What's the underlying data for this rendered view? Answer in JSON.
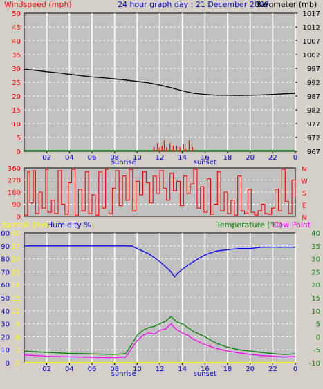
{
  "header": {
    "windspeed_label": "Windspeed (mph)",
    "title": "24 hour graph day : 21 December 2009",
    "barometer_label": "Barometer (mb)"
  },
  "sunrise_label": "sunrise",
  "sunset_label": "sunset",
  "x_ticks": [
    "02",
    "04",
    "06",
    "08",
    "10",
    "12",
    "14",
    "16",
    "18",
    "20",
    "22",
    "0"
  ],
  "bottom_header": {
    "rainfall_label": "Rainfall (mm)",
    "humidity_label": "Humidity %",
    "temperature_label": "Temperature (°C)",
    "dewpoint_label": "Dew Point"
  },
  "colors": {
    "background": "#d4d0c8",
    "plot_bg": "#c0c0c0",
    "barometer": "#000000",
    "windspeed": "#ff0000",
    "wind_dir": "#ff0000",
    "humidity": "#0000ff",
    "temperature": "#008000",
    "dewpoint": "#ff00ff",
    "rainfall": "#ffff00",
    "grid": "#ffffff"
  },
  "chart_data": [
    {
      "type": "line",
      "title": "24 hour graph day : 21 December 2009",
      "xlabel": "",
      "left_axis": {
        "label": "Windspeed (mph)",
        "ticks": [
          0,
          5,
          10,
          15,
          20,
          25,
          30,
          35,
          40,
          45,
          50
        ],
        "range": [
          0,
          50
        ]
      },
      "right_axis": {
        "label": "Barometer (mb)",
        "ticks": [
          967,
          972,
          977,
          982,
          987,
          992,
          997,
          1002,
          1007,
          1012,
          1017
        ],
        "range": [
          967,
          1017
        ]
      },
      "x_range_hours": [
        0,
        24
      ],
      "series": [
        {
          "name": "Barometer (mb)",
          "axis": "right",
          "type": "line",
          "x": [
            0,
            1,
            2,
            3,
            4,
            5,
            6,
            7,
            8,
            9,
            10,
            11,
            12,
            13,
            14,
            15,
            16,
            17,
            18,
            19,
            20,
            21,
            22,
            23,
            24
          ],
          "y": [
            996.7,
            996.3,
            995.8,
            995.4,
            994.9,
            994.4,
            993.9,
            993.6,
            993.2,
            992.8,
            992.3,
            991.8,
            991.0,
            990.0,
            988.9,
            988.0,
            987.6,
            987.3,
            987.3,
            987.2,
            987.3,
            987.4,
            987.6,
            987.8,
            988.0
          ]
        },
        {
          "name": "Windspeed (mph)",
          "axis": "left",
          "type": "bar",
          "x": [
            11.5,
            11.8,
            12.0,
            12.2,
            12.4,
            12.6,
            12.9,
            13.2,
            13.5,
            13.8,
            14.1,
            14.3,
            14.6,
            14.9
          ],
          "y": [
            1.5,
            3.0,
            1.5,
            2.0,
            4.0,
            1.5,
            3.0,
            2.0,
            2.0,
            1.5,
            2.5,
            1.0,
            4.0,
            1.5
          ]
        }
      ]
    },
    {
      "type": "line",
      "left_axis": {
        "ticks": [
          0,
          90,
          180,
          270,
          360
        ],
        "range": [
          0,
          360
        ]
      },
      "right_axis": {
        "ticks": [
          "N",
          "W",
          "S",
          "E",
          "N"
        ]
      },
      "x_range_hours": [
        0,
        24
      ],
      "series": [
        {
          "name": "Wind direction",
          "x": [
            0.0,
            0.3,
            0.5,
            0.8,
            1.0,
            1.3,
            1.6,
            1.9,
            2.1,
            2.4,
            2.7,
            3.0,
            3.3,
            3.6,
            3.9,
            4.2,
            4.5,
            4.8,
            5.1,
            5.4,
            5.7,
            6.0,
            6.3,
            6.6,
            6.9,
            7.2,
            7.5,
            7.8,
            8.1,
            8.4,
            8.7,
            9.0,
            9.3,
            9.6,
            9.9,
            10.2,
            10.5,
            10.8,
            11.1,
            11.4,
            11.7,
            12.0,
            12.3,
            12.6,
            12.9,
            13.2,
            13.5,
            13.8,
            14.1,
            14.4,
            14.7,
            15.0,
            15.3,
            15.6,
            15.9,
            16.2,
            16.5,
            16.8,
            17.1,
            17.4,
            17.7,
            18.0,
            18.3,
            18.6,
            18.9,
            19.2,
            19.5,
            19.8,
            20.1,
            20.4,
            20.7,
            21.0,
            21.3,
            21.6,
            21.9,
            22.2,
            22.5,
            22.8,
            23.1,
            23.4,
            23.7,
            24.0
          ],
          "y": [
            10,
            330,
            100,
            340,
            20,
            180,
            60,
            350,
            30,
            120,
            20,
            340,
            90,
            15,
            250,
            350,
            10,
            200,
            40,
            330,
            20,
            160,
            10,
            330,
            60,
            350,
            20,
            210,
            340,
            80,
            300,
            120,
            350,
            40,
            260,
            160,
            330,
            250,
            100,
            300,
            170,
            340,
            210,
            120,
            320,
            190,
            260,
            80,
            300,
            170,
            240,
            350,
            60,
            220,
            30,
            280,
            15,
            90,
            330,
            40,
            180,
            20,
            120,
            10,
            300,
            40,
            20,
            200,
            30,
            10,
            40,
            90,
            20,
            15,
            60,
            200,
            40,
            350,
            110,
            20,
            270,
            140
          ]
        }
      ]
    },
    {
      "type": "line",
      "axes": [
        {
          "label": "Humidity %",
          "side": "left",
          "ticks": [
            0,
            10,
            20,
            30,
            40,
            50,
            60,
            70,
            80,
            90,
            100
          ],
          "range": [
            0,
            100
          ]
        },
        {
          "label": "Rainfall (mm)",
          "side": "left",
          "ticks": [
            0,
            3,
            6,
            9,
            12,
            15,
            18,
            21,
            24,
            27,
            30
          ],
          "range": [
            0,
            30
          ]
        },
        {
          "label": "Temperature (°C)",
          "side": "right",
          "ticks": [
            -10,
            -5,
            0,
            5,
            10,
            15,
            20,
            25,
            30,
            35,
            40
          ],
          "range": [
            -10,
            40
          ]
        }
      ],
      "x_range_hours": [
        0,
        24
      ],
      "series": [
        {
          "name": "Humidity %",
          "axis": "Humidity %",
          "x": [
            0,
            1,
            2,
            3,
            4,
            5,
            6,
            7,
            8,
            9,
            9.5,
            10,
            11,
            12,
            12.5,
            13,
            13.3,
            13.6,
            14,
            15,
            16,
            17,
            18,
            19,
            20,
            21,
            22,
            23,
            24
          ],
          "y": [
            90,
            90,
            90,
            90,
            90,
            90,
            90,
            90,
            90,
            90,
            90,
            88,
            84,
            78,
            74,
            70,
            66,
            69,
            72,
            78,
            83,
            86,
            87,
            88,
            88,
            89,
            89,
            89,
            89
          ]
        },
        {
          "name": "Temperature (°C)",
          "axis": "Temperature (°C)",
          "x": [
            0,
            1,
            2,
            3,
            4,
            5,
            6,
            7,
            8,
            9,
            9.5,
            10,
            10.5,
            11,
            11.5,
            12,
            12.5,
            13,
            13.3,
            13.6,
            14,
            14.5,
            15,
            16,
            17,
            18,
            19,
            20,
            21,
            22,
            23,
            24
          ],
          "y": [
            -5.5,
            -5.8,
            -6.0,
            -6.2,
            -6.4,
            -6.5,
            -6.6,
            -6.7,
            -6.8,
            -6.5,
            -3,
            0.5,
            2.5,
            3.5,
            4.0,
            5.0,
            6.0,
            7.8,
            6.5,
            5.5,
            5.0,
            3.5,
            2.0,
            0,
            -2.5,
            -4.0,
            -5.0,
            -5.5,
            -6.0,
            -6.5,
            -6.8,
            -6.6
          ]
        },
        {
          "name": "Dew Point",
          "axis": "Temperature (°C)",
          "x": [
            0,
            1,
            2,
            3,
            4,
            5,
            6,
            7,
            8,
            9,
            9.5,
            10,
            10.5,
            11,
            11.5,
            12,
            12.5,
            13,
            13.3,
            13.6,
            14,
            14.5,
            15,
            16,
            17,
            18,
            19,
            20,
            21,
            22,
            23,
            24
          ],
          "y": [
            -7.0,
            -7.2,
            -7.5,
            -7.6,
            -7.7,
            -7.8,
            -7.9,
            -8.0,
            -8.0,
            -7.8,
            -4.5,
            -1.5,
            0.5,
            1.5,
            1.0,
            2.5,
            3.0,
            5.0,
            3.5,
            2.5,
            1.5,
            0.5,
            -1.0,
            -3.0,
            -4.5,
            -5.5,
            -6.2,
            -6.8,
            -7.2,
            -7.5,
            -7.8,
            -7.6
          ]
        },
        {
          "name": "Rainfall (mm)",
          "axis": "Rainfall (mm)",
          "x": [
            0,
            24
          ],
          "y": [
            0,
            0
          ]
        }
      ]
    }
  ]
}
